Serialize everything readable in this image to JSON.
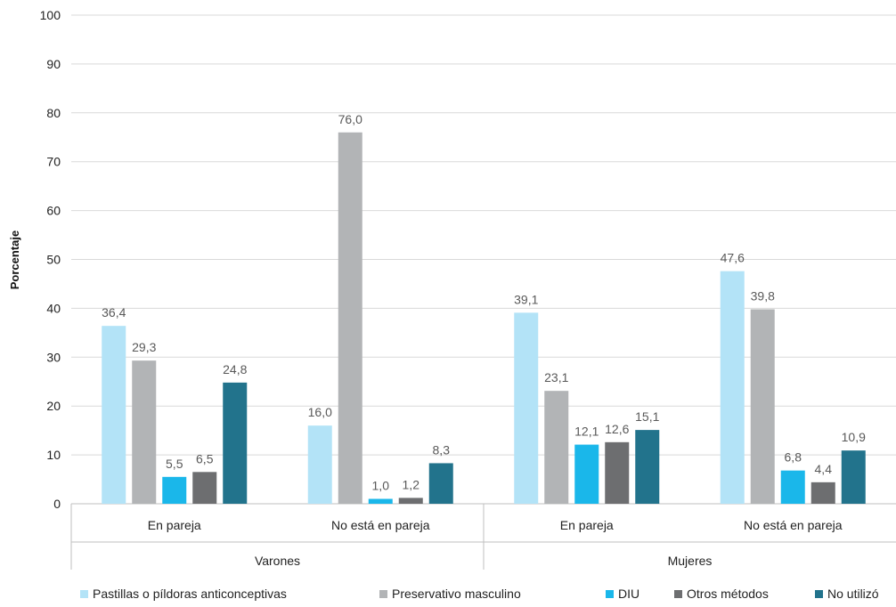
{
  "chart_data": {
    "type": "bar",
    "ylabel": "Porcentaje",
    "xlabel": "",
    "ylim": [
      0,
      100
    ],
    "yticks": [
      0,
      10,
      20,
      30,
      40,
      50,
      60,
      70,
      80,
      90,
      100
    ],
    "grid": true,
    "legend_position": "bottom",
    "groups": [
      {
        "label": "Varones",
        "categories": [
          "En pareja",
          "No está en pareja"
        ]
      },
      {
        "label": "Mujeres",
        "categories": [
          "En pareja",
          "No está en pareja"
        ]
      }
    ],
    "categories": [
      "Varones - En pareja",
      "Varones - No está en pareja",
      "Mujeres - En pareja",
      "Mujeres - No está en pareja"
    ],
    "series": [
      {
        "name": "Pastillas o píldoras anticonceptivas",
        "color": "#b3e3f7",
        "values": [
          36.4,
          16.0,
          39.1,
          47.6
        ],
        "labels": [
          "36,4",
          "16,0",
          "39,1",
          "47,6"
        ]
      },
      {
        "name": "Preservativo masculino",
        "color": "#b2b4b6",
        "values": [
          29.3,
          76.0,
          23.1,
          39.8
        ],
        "labels": [
          "29,3",
          "76,0",
          "23,1",
          "39,8"
        ]
      },
      {
        "name": "DIU",
        "color": "#1ab7ea",
        "values": [
          5.5,
          1.0,
          12.1,
          6.8
        ],
        "labels": [
          "5,5",
          "1,0",
          "12,1",
          "6,8"
        ]
      },
      {
        "name": "Otros métodos",
        "color": "#6d6e70",
        "values": [
          6.5,
          1.2,
          12.6,
          4.4
        ],
        "labels": [
          "6,5",
          "1,2",
          "12,6",
          "4,4"
        ]
      },
      {
        "name": "No utilizó",
        "color": "#22738c",
        "values": [
          24.8,
          8.3,
          15.1,
          10.9
        ],
        "labels": [
          "24,8",
          "8,3",
          "15,1",
          "10,9"
        ]
      }
    ]
  }
}
